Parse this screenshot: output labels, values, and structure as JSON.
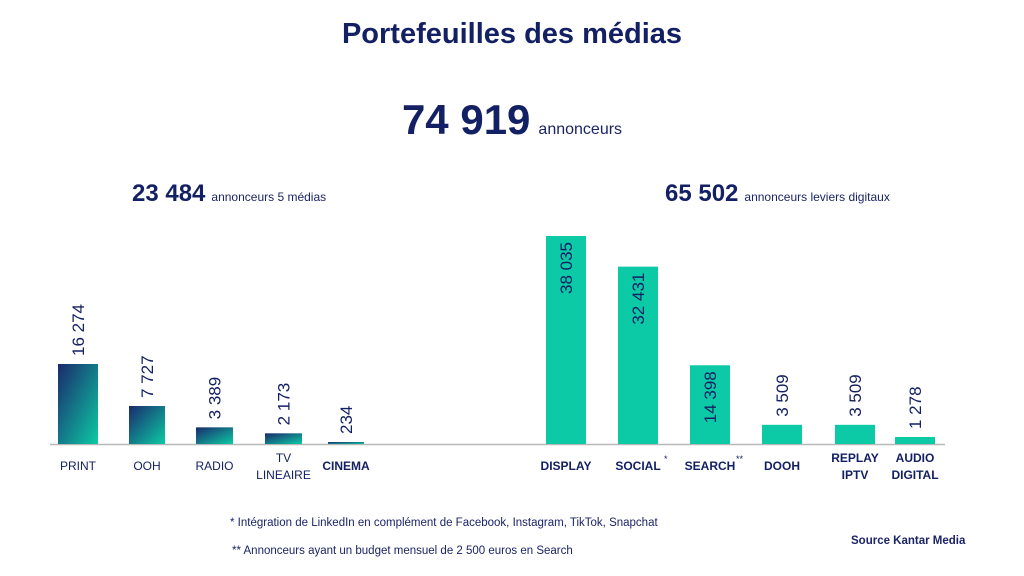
{
  "title": "Portefeuilles des médias",
  "total": {
    "value": "74 919",
    "label": "annonceurs"
  },
  "left_total": {
    "value": "23 484",
    "label": "annonceurs 5 médias"
  },
  "right_total": {
    "value": "65 502",
    "label": "annonceurs leviers digitaux"
  },
  "footnotes": [
    "* Intégration de LinkedIn en complément de Facebook, Instagram, TikTok, Snapchat",
    "** Annonceurs ayant un budget mensuel de 2 500 euros en Search"
  ],
  "source": "Source Kantar Media",
  "colors": {
    "navy": "#142064",
    "teal": "#0ccaa5",
    "gradient_dark": "#1a2a6c"
  },
  "chart_data": [
    {
      "type": "bar",
      "categories": [
        "PRINT",
        "OOH",
        "RADIO",
        "TV LINEAIRE",
        "CINEMA"
      ],
      "values": [
        16274,
        7727,
        3389,
        2173,
        234
      ],
      "data_labels": [
        "16 274",
        "7 727",
        "3 389",
        "2 173",
        "234"
      ],
      "grid": false
    },
    {
      "type": "bar",
      "categories": [
        "DISPLAY",
        "SOCIAL*",
        "SEARCH**",
        "DOOH",
        "REPLAY IPTV",
        "AUDIO DIGITAL"
      ],
      "values": [
        38035,
        32431,
        14398,
        3509,
        3509,
        1278
      ],
      "data_labels": [
        "38 035",
        "32 431",
        "14 398",
        "3 509",
        "3 509",
        "1 278"
      ],
      "grid": false
    }
  ]
}
